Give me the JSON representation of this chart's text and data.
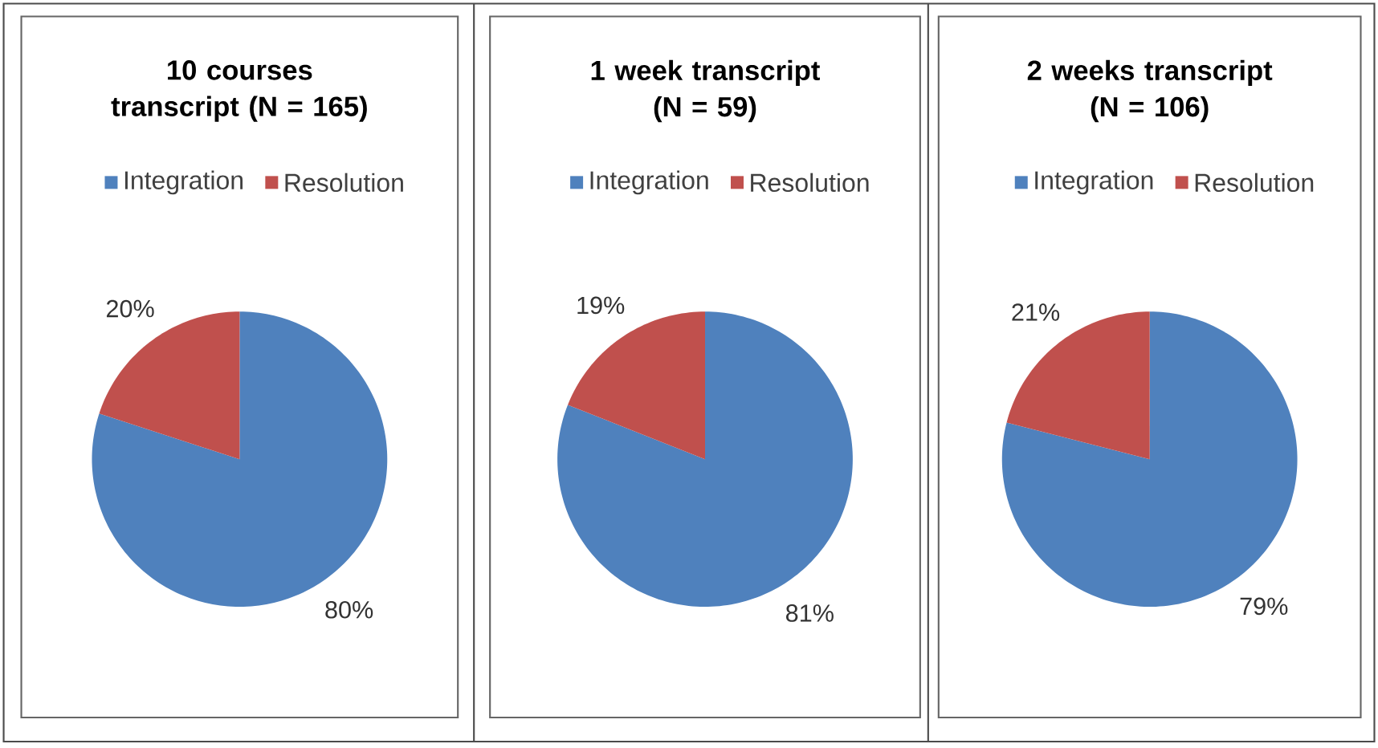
{
  "chart_data": [
    {
      "type": "pie",
      "title": "10 courses transcript (N = 165)",
      "categories": [
        "Integration",
        "Resolution"
      ],
      "values": [
        80,
        20
      ],
      "colors": [
        "#4f81bd",
        "#c0504d"
      ],
      "value_labels": [
        "80%",
        "20%"
      ],
      "legend": "top"
    },
    {
      "type": "pie",
      "title": "1 week transcript (N = 59)",
      "categories": [
        "Integration",
        "Resolution"
      ],
      "values": [
        81,
        19
      ],
      "colors": [
        "#4f81bd",
        "#c0504d"
      ],
      "value_labels": [
        "81%",
        "19%"
      ],
      "legend": "top"
    },
    {
      "type": "pie",
      "title": "2 weeks transcript (N = 106)",
      "categories": [
        "Integration",
        "Resolution"
      ],
      "values": [
        79,
        21
      ],
      "colors": [
        "#4f81bd",
        "#c0504d"
      ],
      "value_labels": [
        "79%",
        "21%"
      ],
      "legend": "top"
    }
  ]
}
